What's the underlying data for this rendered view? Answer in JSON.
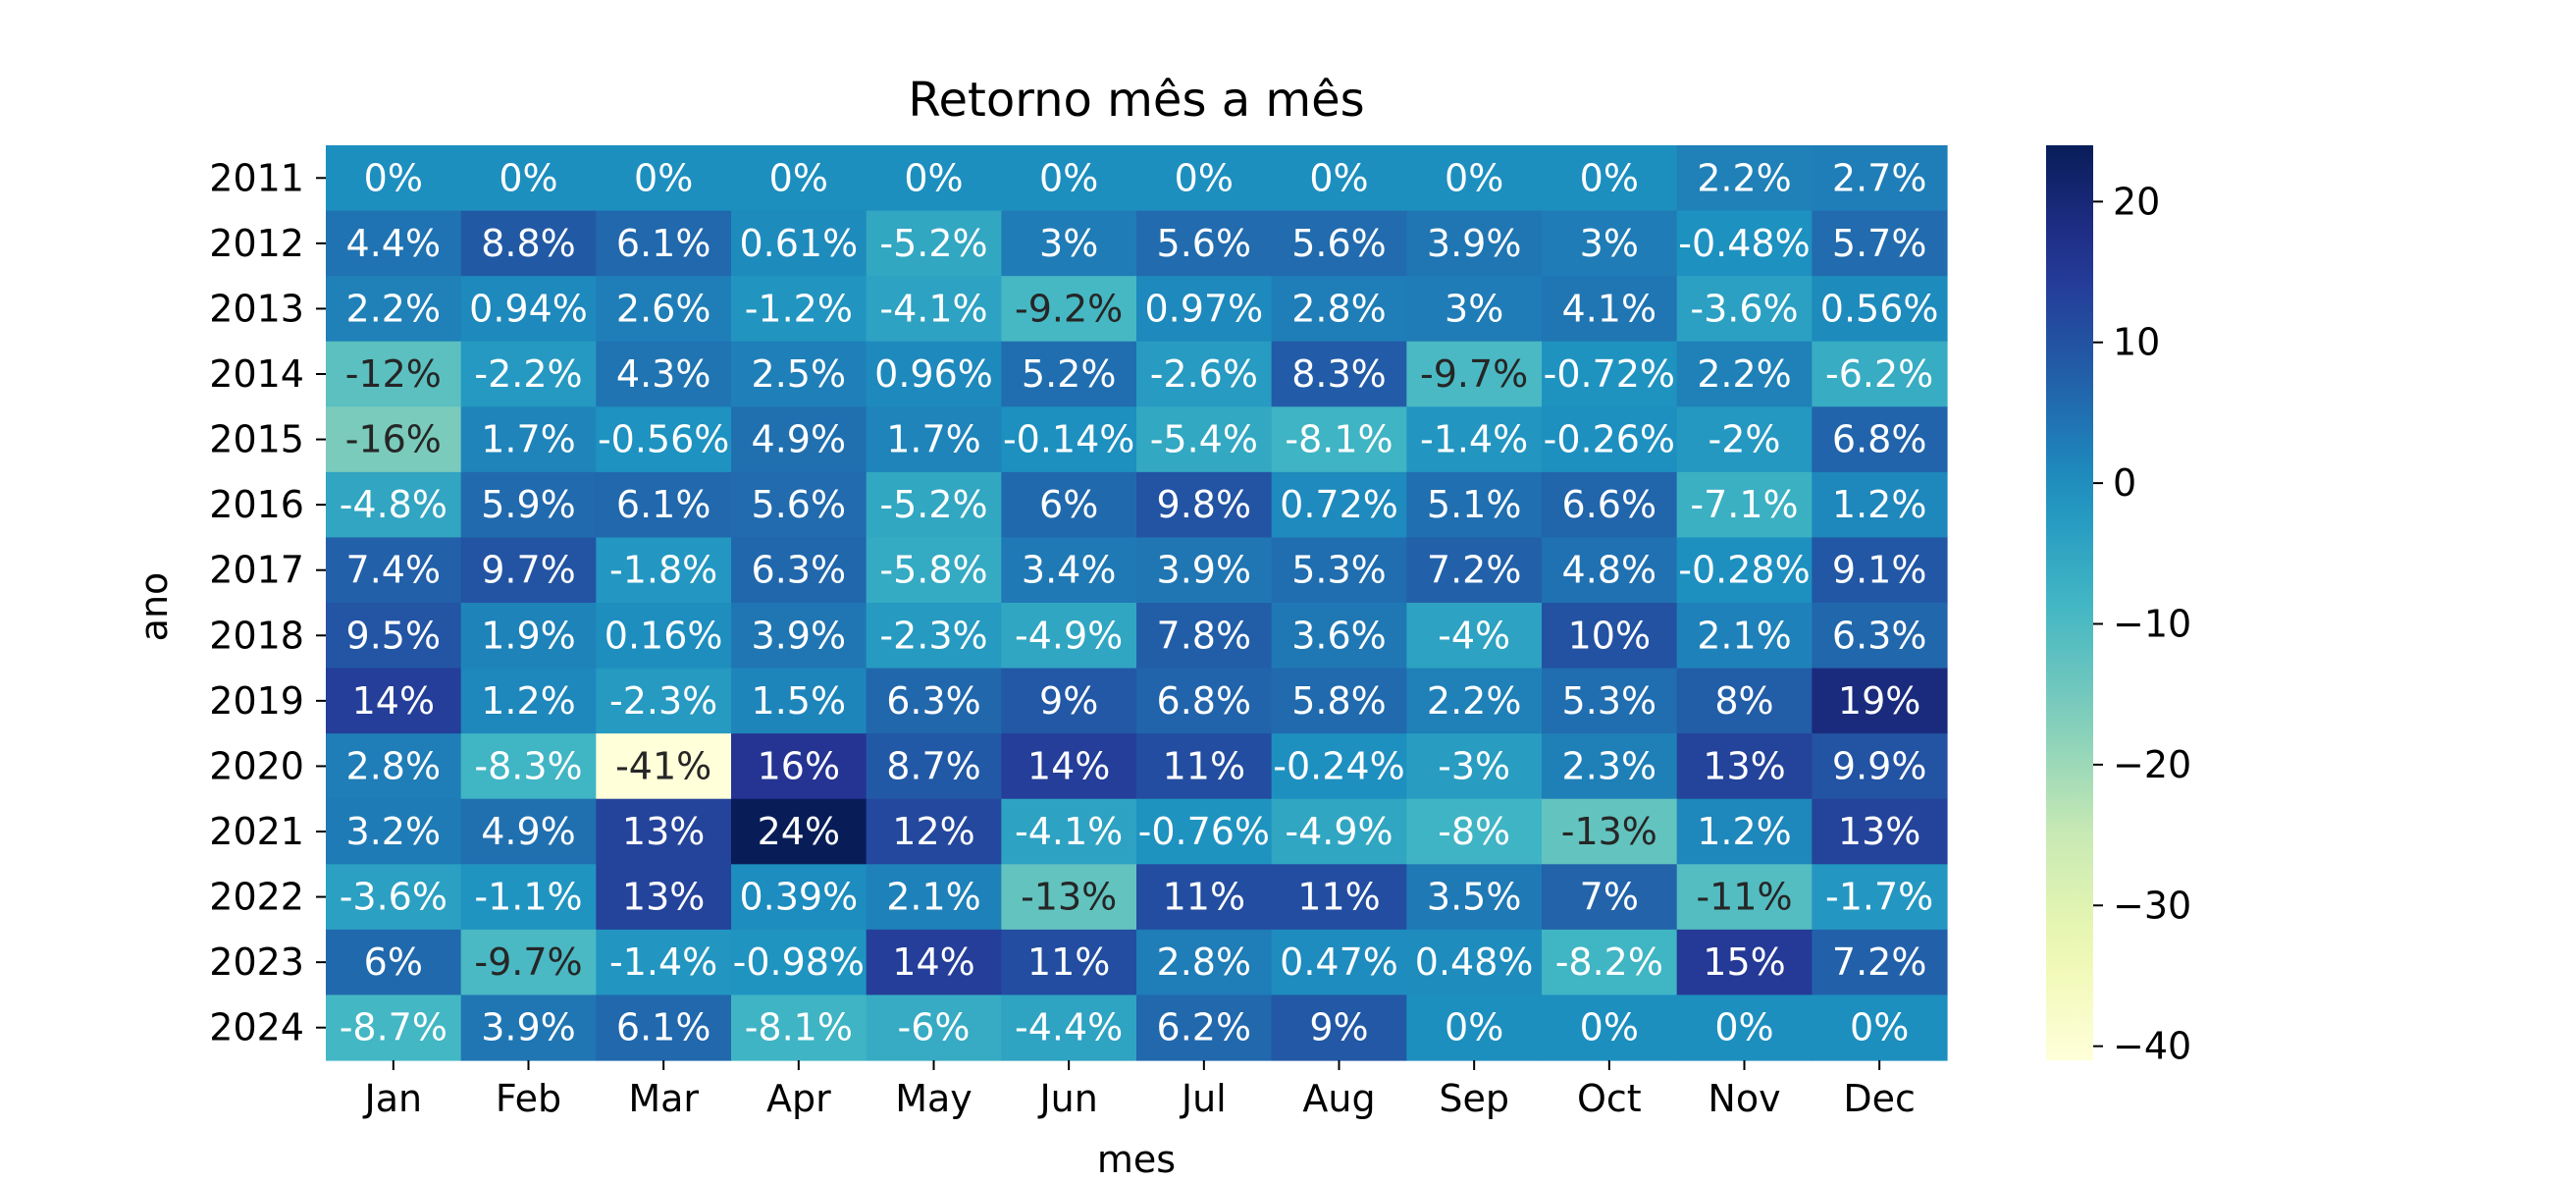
{
  "chart_data": {
    "type": "heatmap",
    "title": "Retorno mês a mês",
    "xlabel": "mes",
    "ylabel": "ano",
    "x": [
      "Jan",
      "Feb",
      "Mar",
      "Apr",
      "May",
      "Jun",
      "Jul",
      "Aug",
      "Sep",
      "Oct",
      "Nov",
      "Dec"
    ],
    "y": [
      "2011",
      "2012",
      "2013",
      "2014",
      "2015",
      "2016",
      "2017",
      "2018",
      "2019",
      "2020",
      "2021",
      "2022",
      "2023",
      "2024"
    ],
    "values": [
      [
        0,
        0,
        0,
        0,
        0,
        0,
        0,
        0,
        0,
        0,
        2.2,
        2.7
      ],
      [
        4.4,
        8.8,
        6.1,
        0.61,
        -5.2,
        3,
        5.6,
        5.6,
        3.9,
        3,
        -0.48,
        5.7
      ],
      [
        2.2,
        0.94,
        2.6,
        -1.2,
        -4.1,
        -9.2,
        0.97,
        2.8,
        3,
        4.1,
        -3.6,
        0.56
      ],
      [
        -12,
        -2.2,
        4.3,
        2.5,
        0.96,
        5.2,
        -2.6,
        8.3,
        -9.7,
        -0.72,
        2.2,
        -6.2
      ],
      [
        -16,
        1.7,
        -0.56,
        4.9,
        1.7,
        -0.14,
        -5.4,
        -8.1,
        -1.4,
        -0.26,
        -2,
        6.8
      ],
      [
        -4.8,
        5.9,
        6.1,
        5.6,
        -5.2,
        6,
        9.8,
        0.72,
        5.1,
        6.6,
        -7.1,
        1.2
      ],
      [
        7.4,
        9.7,
        -1.8,
        6.3,
        -5.8,
        3.4,
        3.9,
        5.3,
        7.2,
        4.8,
        -0.28,
        9.1
      ],
      [
        9.5,
        1.9,
        0.16,
        3.9,
        -2.3,
        -4.9,
        7.8,
        3.6,
        -4,
        10,
        2.1,
        6.3
      ],
      [
        14,
        1.2,
        -2.3,
        1.5,
        6.3,
        9,
        6.8,
        5.8,
        2.2,
        5.3,
        8,
        19
      ],
      [
        2.8,
        -8.3,
        -41,
        16,
        8.7,
        14,
        11,
        -0.24,
        -3,
        2.3,
        13,
        9.9
      ],
      [
        3.2,
        4.9,
        13,
        24,
        12,
        -4.1,
        -0.76,
        -4.9,
        -8,
        -13,
        1.2,
        13
      ],
      [
        -3.6,
        -1.1,
        13,
        0.39,
        2.1,
        -13,
        11,
        11,
        3.5,
        7,
        -11,
        -1.7
      ],
      [
        6,
        -9.7,
        -1.4,
        -0.98,
        14,
        11,
        2.8,
        0.47,
        0.48,
        -8.2,
        15,
        7.2
      ],
      [
        -8.7,
        3.9,
        6.1,
        -8.1,
        -6,
        -4.4,
        6.2,
        9,
        0,
        0,
        0,
        0
      ]
    ],
    "value_format": "percent",
    "colormap": "YlGnBu",
    "vmin": -41,
    "vmax": 24,
    "colorbar": {
      "ticks": [
        20,
        10,
        0,
        -10,
        -20,
        -30,
        -40
      ],
      "tick_labels": [
        "20",
        "10",
        "0",
        "−10",
        "−20",
        "−30",
        "−40"
      ]
    },
    "grid": false,
    "legend": "colorbar-right"
  }
}
